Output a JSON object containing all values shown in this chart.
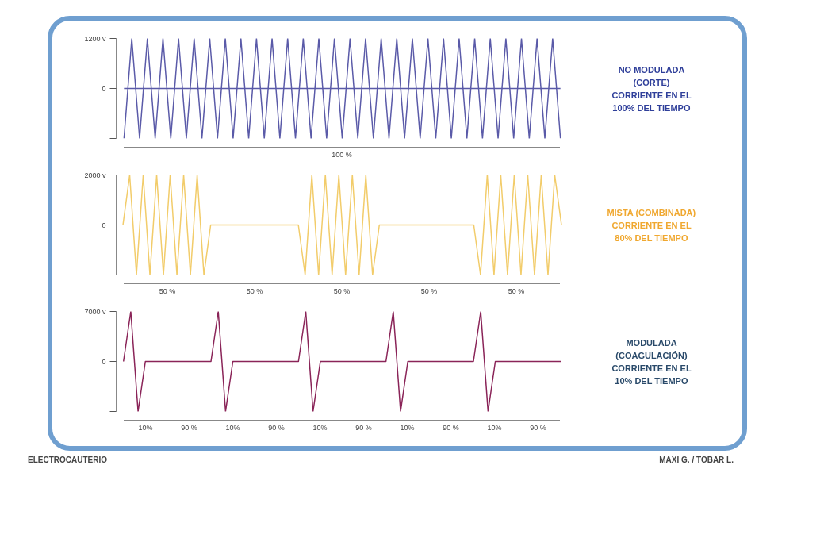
{
  "chart_data": [
    {
      "type": "line",
      "grid": false,
      "marker": "none",
      "line_style": "solid",
      "ylim": [
        -1200,
        1200
      ],
      "yticks": [
        {
          "value": 1200,
          "label": "1200 v"
        },
        {
          "value": 0,
          "label": "0"
        },
        {
          "value": -1200,
          "label": null
        }
      ],
      "categories": [
        null,
        null,
        null,
        null,
        null,
        null,
        null,
        null,
        null,
        null,
        null,
        null,
        null,
        null,
        null,
        null,
        null,
        null,
        null,
        null,
        null,
        null,
        null,
        null,
        null,
        null,
        null,
        null,
        null,
        null,
        null,
        null,
        null,
        null,
        null,
        null,
        null,
        null,
        null,
        null,
        null,
        null,
        null,
        null,
        null,
        null,
        null,
        null,
        null,
        null,
        null,
        null,
        null,
        null,
        null,
        null,
        null
      ],
      "series": [
        {
          "name": "NO MODULADA\n(CORTE)\nCORRIENTE EN EL\n100% DEL TIEMPO",
          "color": "#5a5aa8",
          "values": [
            -1200,
            1200,
            -1200,
            1200,
            -1200,
            1200,
            -1200,
            1200,
            -1200,
            1200,
            -1200,
            1200,
            -1200,
            1200,
            -1200,
            1200,
            -1200,
            1200,
            -1200,
            1200,
            -1200,
            1200,
            -1200,
            1200,
            -1200,
            1200,
            -1200,
            1200,
            -1200,
            1200,
            -1200,
            1200,
            -1200,
            1200,
            -1200,
            1200,
            -1200,
            1200,
            -1200,
            1200,
            -1200,
            1200,
            -1200,
            1200,
            -1200,
            1200,
            -1200,
            1200,
            -1200,
            1200,
            -1200,
            1200,
            -1200,
            1200,
            -1200,
            1200,
            -1200
          ]
        },
        {
          "color": "#5a5aa8",
          "values": [
            0,
            0,
            0,
            0,
            0,
            0,
            0,
            0,
            0,
            0,
            0,
            0,
            0,
            0,
            0,
            0,
            0,
            0,
            0,
            0,
            0,
            0,
            0,
            0,
            0,
            0,
            0,
            0,
            0,
            0,
            0,
            0,
            0,
            0,
            0,
            0,
            0,
            0,
            0,
            0,
            0,
            0,
            0,
            0,
            0,
            0,
            0,
            0,
            0,
            0,
            0,
            0,
            0,
            0,
            0,
            0,
            0
          ]
        }
      ],
      "annotations": [
        "100 %"
      ]
    },
    {
      "type": "line",
      "grid": false,
      "marker": "none",
      "line_style": "solid",
      "ylim": [
        -2000,
        2000
      ],
      "yticks": [
        {
          "value": 2000,
          "label": "2000 v"
        },
        {
          "value": 0,
          "label": "0"
        },
        {
          "value": -2000,
          "label": null
        }
      ],
      "categories": [
        null,
        null,
        null,
        null,
        null,
        null,
        null,
        null,
        null,
        null,
        null,
        null,
        null,
        null,
        null,
        null,
        null,
        null,
        null,
        null,
        null,
        null,
        null,
        null,
        null,
        null,
        null,
        null,
        null,
        null,
        null,
        null,
        null,
        null,
        null,
        null,
        null,
        null,
        null,
        null,
        null,
        null,
        null,
        null,
        null,
        null,
        null,
        null,
        null,
        null,
        null,
        null,
        null,
        null,
        null,
        null,
        null,
        null,
        null,
        null,
        null,
        null,
        null,
        null,
        null,
        null
      ],
      "series": [
        {
          "name": "MISTA (COMBINADA)\nCORRIENTE EN EL\n80% DEL TIEMPO",
          "color": "#f2cc6a",
          "values": [
            0,
            2000,
            -2000,
            2000,
            -2000,
            2000,
            -2000,
            2000,
            -2000,
            2000,
            -2000,
            2000,
            -2000,
            0,
            0,
            0,
            0,
            0,
            0,
            0,
            0,
            0,
            0,
            0,
            0,
            0,
            0,
            -2000,
            2000,
            -2000,
            2000,
            -2000,
            2000,
            -2000,
            2000,
            -2000,
            2000,
            -2000,
            0,
            0,
            0,
            0,
            0,
            0,
            0,
            0,
            0,
            0,
            0,
            0,
            0,
            0,
            0,
            -2000,
            2000,
            -2000,
            2000,
            -2000,
            2000,
            -2000,
            2000,
            -2000,
            2000,
            -2000,
            2000,
            0
          ]
        }
      ],
      "annotations": [
        "50 %",
        "50 %",
        "50 %",
        "50 %",
        "50 %"
      ]
    },
    {
      "type": "line",
      "grid": false,
      "marker": "none",
      "line_style": "solid",
      "ylim": [
        -7000,
        7000
      ],
      "yticks": [
        {
          "value": 7000,
          "label": "7000 v"
        },
        {
          "value": 0,
          "label": "0"
        },
        {
          "value": -7000,
          "label": null
        }
      ],
      "categories": [
        null,
        null,
        null,
        null,
        null,
        null,
        null,
        null,
        null,
        null,
        null,
        null,
        null,
        null,
        null,
        null,
        null,
        null,
        null,
        null,
        null,
        null,
        null,
        null,
        null,
        null,
        null,
        null,
        null,
        null,
        null,
        null,
        null,
        null,
        null,
        null,
        null,
        null,
        null,
        null,
        null,
        null,
        null,
        null,
        null,
        null,
        null,
        null,
        null,
        null,
        null,
        null,
        null,
        null,
        null,
        null,
        null,
        null,
        null,
        null,
        null
      ],
      "series": [
        {
          "name": "MODULADA\n(COAGULACIÓN)\nCORRIENTE EN EL\n10% DEL TIEMPO",
          "color": "#8a2458",
          "values": [
            0,
            7000,
            -7000,
            0,
            0,
            0,
            0,
            0,
            0,
            0,
            0,
            0,
            0,
            7000,
            -7000,
            0,
            0,
            0,
            0,
            0,
            0,
            0,
            0,
            0,
            0,
            7000,
            -7000,
            0,
            0,
            0,
            0,
            0,
            0,
            0,
            0,
            0,
            0,
            7000,
            -7000,
            0,
            0,
            0,
            0,
            0,
            0,
            0,
            0,
            0,
            0,
            7000,
            -7000,
            0,
            0,
            0,
            0,
            0,
            0,
            0,
            0,
            0,
            0
          ]
        }
      ],
      "annotations": [
        "10%",
        "90 %",
        "10%",
        "90 %",
        "10%",
        "90 %",
        "10%",
        "90 %",
        "10%",
        "90 %"
      ]
    },
    {
      "type": "other",
      "annotations": [
        "ELECTROCAUTERIO",
        "MAXI G. / TOBAR L."
      ]
    }
  ]
}
